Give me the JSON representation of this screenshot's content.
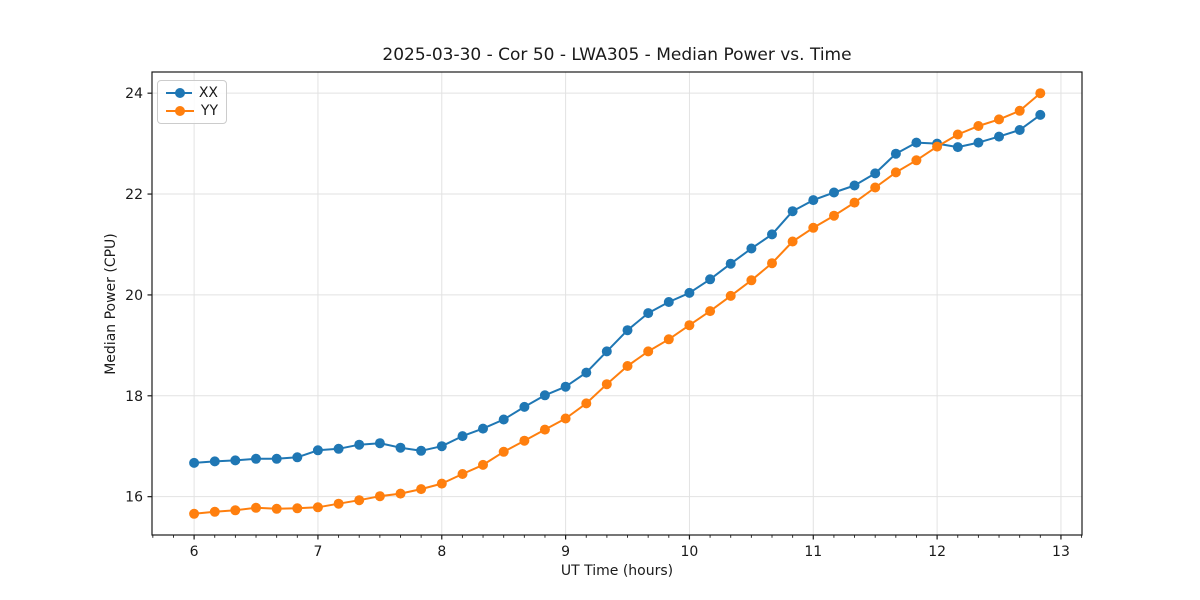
{
  "chart_data": {
    "type": "line",
    "title": "2025-03-30 - Cor 50 - LWA305 - Median Power vs. Time",
    "xlabel": "UT Time (hours)",
    "ylabel": "Median Power (CPU)",
    "xlim": [
      5.66,
      13.17
    ],
    "ylim": [
      15.24,
      24.42
    ],
    "x_ticks": [
      6,
      7,
      8,
      9,
      10,
      11,
      12,
      13
    ],
    "y_ticks": [
      16,
      18,
      20,
      22,
      24
    ],
    "x_minor_step_hours": 0.1667,
    "grid": true,
    "grid_color": "#e2e2e2",
    "legend_position": "upper left",
    "x": [
      6.0,
      6.167,
      6.333,
      6.5,
      6.667,
      6.833,
      7.0,
      7.167,
      7.333,
      7.5,
      7.667,
      7.833,
      8.0,
      8.167,
      8.333,
      8.5,
      8.667,
      8.833,
      9.0,
      9.167,
      9.333,
      9.5,
      9.667,
      9.833,
      10.0,
      10.167,
      10.333,
      10.5,
      10.667,
      10.833,
      11.0,
      11.167,
      11.333,
      11.5,
      11.667,
      11.833,
      12.0,
      12.167,
      12.333,
      12.5,
      12.667,
      12.833
    ],
    "series": [
      {
        "name": "XX",
        "color": "#1f77b4",
        "values": [
          16.67,
          16.7,
          16.72,
          16.75,
          16.75,
          16.78,
          16.92,
          16.95,
          17.03,
          17.06,
          16.97,
          16.91,
          17.0,
          17.2,
          17.35,
          17.53,
          17.78,
          18.01,
          18.18,
          18.46,
          18.88,
          19.3,
          19.64,
          19.86,
          20.04,
          20.31,
          20.62,
          20.92,
          21.2,
          21.66,
          21.88,
          22.03,
          22.17,
          22.41,
          22.8,
          23.02,
          23.0,
          22.93,
          23.02,
          23.14,
          23.27,
          23.57
        ]
      },
      {
        "name": "YY",
        "color": "#ff7f0e",
        "values": [
          15.66,
          15.7,
          15.73,
          15.78,
          15.76,
          15.77,
          15.79,
          15.86,
          15.93,
          16.01,
          16.06,
          16.15,
          16.26,
          16.45,
          16.63,
          16.89,
          17.11,
          17.33,
          17.55,
          17.85,
          18.23,
          18.59,
          18.88,
          19.12,
          19.4,
          19.68,
          19.98,
          20.29,
          20.63,
          21.06,
          21.33,
          21.57,
          21.83,
          22.13,
          22.43,
          22.67,
          22.94,
          23.18,
          23.35,
          23.48,
          23.65,
          24.0
        ]
      }
    ]
  }
}
